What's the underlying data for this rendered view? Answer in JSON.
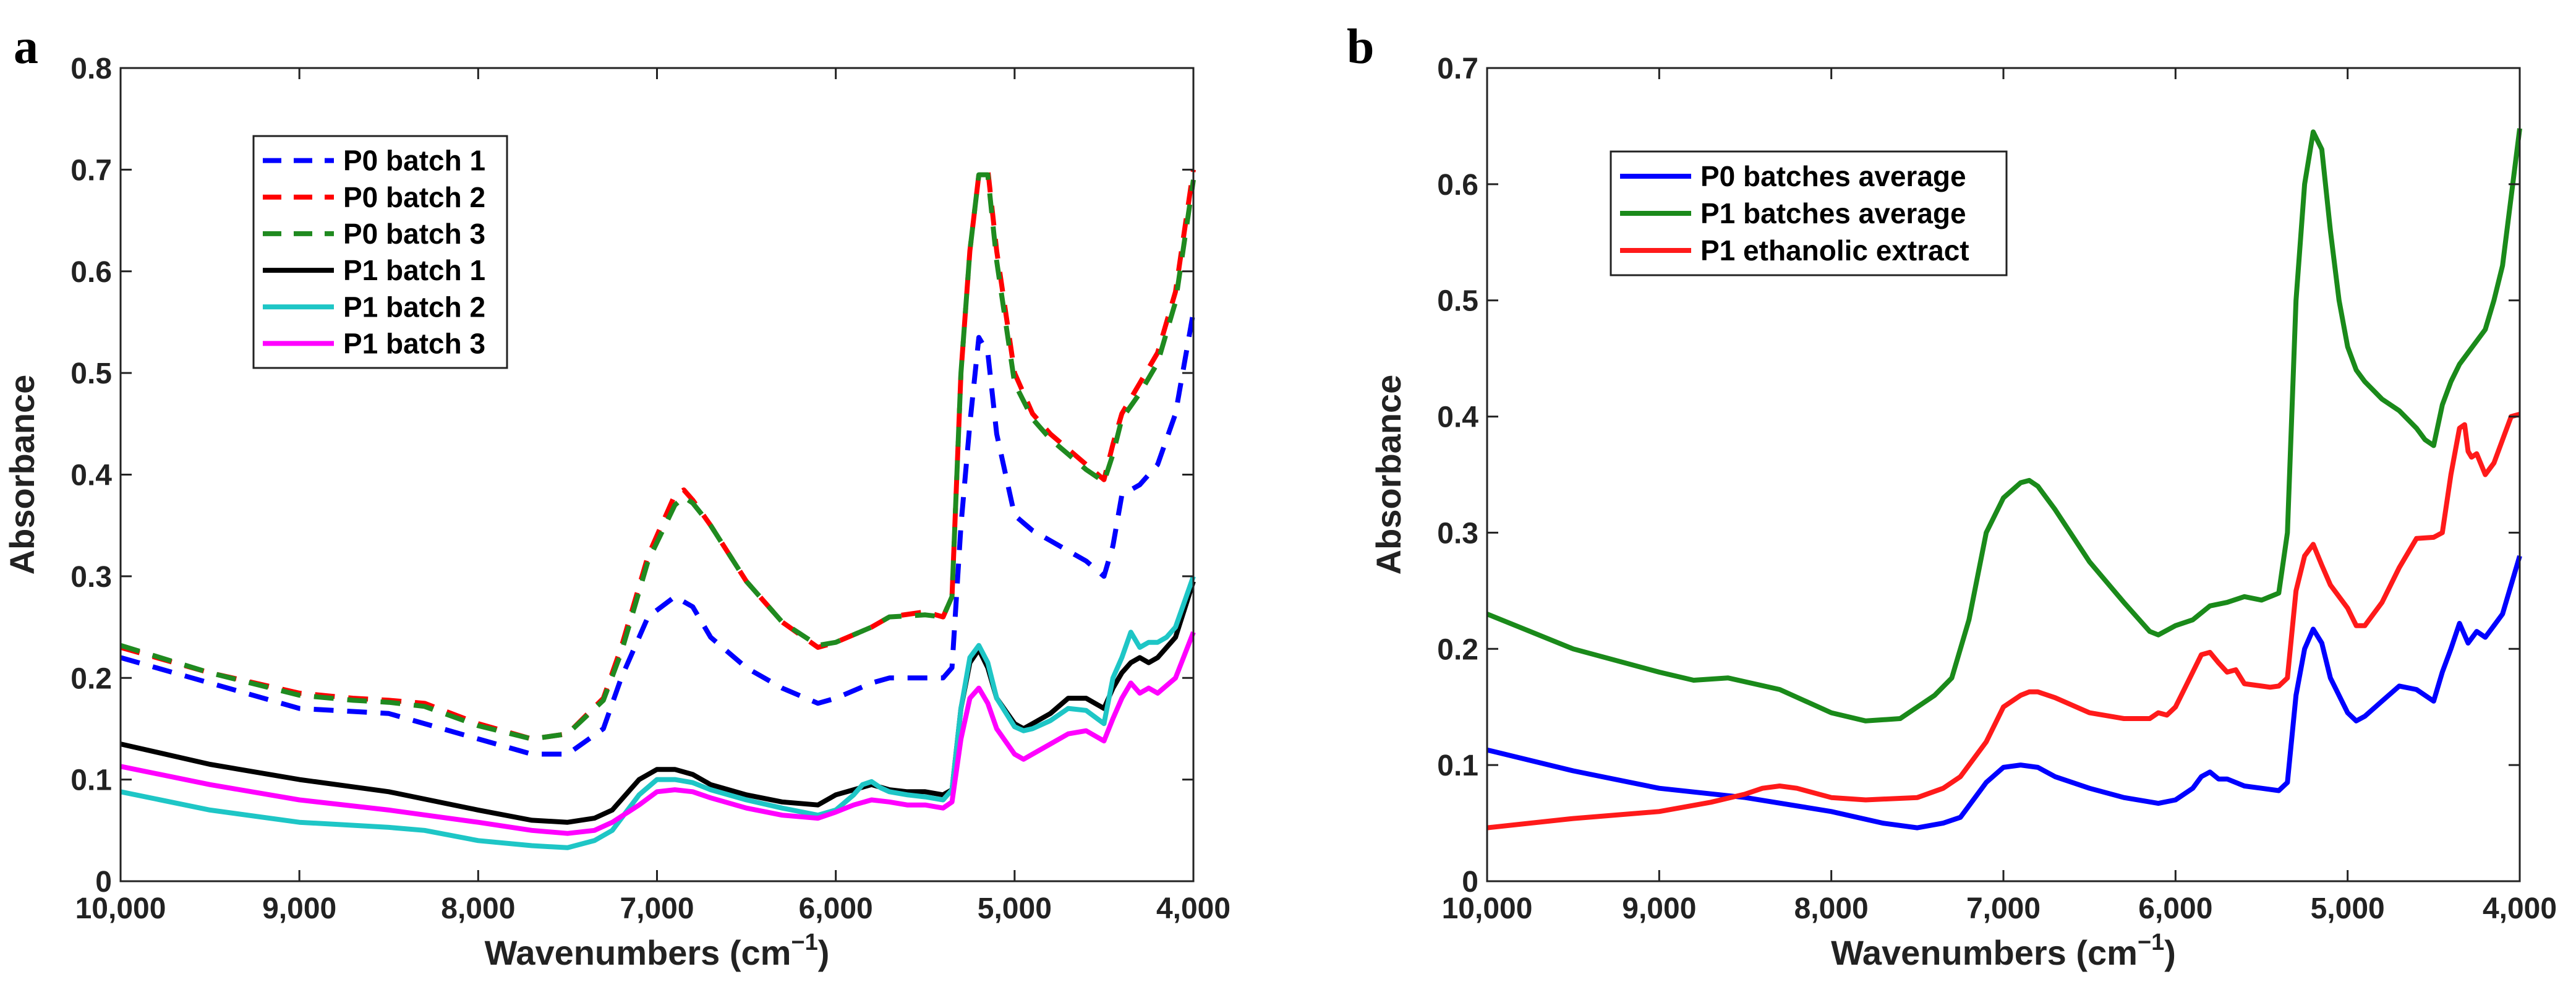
{
  "chart_data": [
    {
      "panel": "a",
      "type": "line",
      "xlabel": "Wavenumbers (cm",
      "xlabel_sup": "−1",
      "xlabel_close": ")",
      "ylabel": "Absorbance",
      "xlim": [
        10000,
        4000
      ],
      "ylim": [
        0,
        0.8
      ],
      "xticks": [
        10000,
        9000,
        8000,
        7000,
        6000,
        5000,
        4000
      ],
      "xtick_labels": [
        "10,000",
        "9,000",
        "8,000",
        "7,000",
        "6,000",
        "5,000",
        "4,000"
      ],
      "yticks": [
        0,
        0.1,
        0.2,
        0.3,
        0.4,
        0.5,
        0.6,
        0.7,
        0.8
      ],
      "ytick_labels": [
        "0",
        "0.1",
        "0.2",
        "0.3",
        "0.4",
        "0.5",
        "0.6",
        "0.7",
        "0.8"
      ],
      "legend_position": "top-left",
      "series": [
        {
          "name": "P0 batch 1",
          "color": "#0000ff",
          "dash": "dashed",
          "x": [
            10000,
            9500,
            9000,
            8500,
            8000,
            7700,
            7500,
            7300,
            7200,
            7050,
            6900,
            6800,
            6700,
            6500,
            6300,
            6100,
            6000,
            5800,
            5700,
            5500,
            5400,
            5350,
            5300,
            5250,
            5200,
            5150,
            5100,
            5000,
            4900,
            4800,
            4700,
            4600,
            4500,
            4450,
            4400,
            4300,
            4200,
            4100,
            4000
          ],
          "y": [
            0.22,
            0.195,
            0.17,
            0.165,
            0.14,
            0.125,
            0.125,
            0.15,
            0.2,
            0.26,
            0.28,
            0.27,
            0.24,
            0.21,
            0.19,
            0.175,
            0.18,
            0.195,
            0.2,
            0.2,
            0.2,
            0.21,
            0.35,
            0.45,
            0.535,
            0.52,
            0.44,
            0.36,
            0.345,
            0.335,
            0.325,
            0.315,
            0.3,
            0.33,
            0.38,
            0.39,
            0.41,
            0.46,
            0.56
          ]
        },
        {
          "name": "P0 batch 2",
          "color": "#ff0000",
          "dash": "dashed",
          "x": [
            10000,
            9500,
            9000,
            8700,
            8500,
            8300,
            8000,
            7700,
            7500,
            7300,
            7200,
            7050,
            6900,
            6850,
            6800,
            6700,
            6500,
            6300,
            6100,
            6000,
            5800,
            5700,
            5500,
            5400,
            5350,
            5300,
            5250,
            5200,
            5150,
            5100,
            5000,
            4900,
            4800,
            4700,
            4600,
            4500,
            4450,
            4400,
            4300,
            4200,
            4100,
            4000
          ],
          "y": [
            0.23,
            0.205,
            0.185,
            0.18,
            0.178,
            0.175,
            0.155,
            0.14,
            0.145,
            0.18,
            0.23,
            0.32,
            0.38,
            0.385,
            0.375,
            0.35,
            0.295,
            0.255,
            0.23,
            0.235,
            0.25,
            0.26,
            0.265,
            0.26,
            0.28,
            0.5,
            0.62,
            0.695,
            0.7,
            0.62,
            0.5,
            0.46,
            0.44,
            0.425,
            0.41,
            0.395,
            0.43,
            0.46,
            0.49,
            0.52,
            0.58,
            0.7
          ]
        },
        {
          "name": "P0 batch 3",
          "color": "#1f8a1f",
          "dash": "dashed",
          "x": [
            10000,
            9500,
            9000,
            8700,
            8500,
            8300,
            8000,
            7700,
            7500,
            7300,
            7200,
            7050,
            6900,
            6850,
            6800,
            6700,
            6500,
            6300,
            6100,
            6000,
            5800,
            5700,
            5500,
            5400,
            5350,
            5300,
            5250,
            5200,
            5150,
            5100,
            5000,
            4900,
            4800,
            4700,
            4600,
            4500,
            4450,
            4400,
            4300,
            4200,
            4100,
            4000
          ],
          "y": [
            0.232,
            0.205,
            0.183,
            0.178,
            0.176,
            0.172,
            0.153,
            0.14,
            0.145,
            0.178,
            0.225,
            0.315,
            0.37,
            0.378,
            0.372,
            0.35,
            0.295,
            0.255,
            0.232,
            0.235,
            0.25,
            0.26,
            0.262,
            0.26,
            0.28,
            0.5,
            0.62,
            0.695,
            0.695,
            0.61,
            0.49,
            0.455,
            0.435,
            0.42,
            0.405,
            0.393,
            0.42,
            0.455,
            0.48,
            0.51,
            0.57,
            0.69
          ]
        },
        {
          "name": "P1 batch 1",
          "color": "#000000",
          "dash": "solid",
          "x": [
            10000,
            9500,
            9000,
            8500,
            8000,
            7700,
            7500,
            7350,
            7250,
            7100,
            7000,
            6900,
            6800,
            6700,
            6500,
            6300,
            6100,
            6000,
            5900,
            5800,
            5700,
            5600,
            5500,
            5400,
            5350,
            5300,
            5250,
            5200,
            5150,
            5100,
            5000,
            4950,
            4900,
            4800,
            4700,
            4600,
            4500,
            4450,
            4400,
            4350,
            4300,
            4250,
            4200,
            4100,
            4000
          ],
          "y": [
            0.135,
            0.115,
            0.1,
            0.088,
            0.07,
            0.06,
            0.058,
            0.062,
            0.07,
            0.1,
            0.11,
            0.11,
            0.105,
            0.095,
            0.085,
            0.078,
            0.075,
            0.085,
            0.09,
            0.095,
            0.09,
            0.088,
            0.088,
            0.085,
            0.09,
            0.17,
            0.215,
            0.228,
            0.21,
            0.18,
            0.155,
            0.15,
            0.155,
            0.165,
            0.18,
            0.18,
            0.17,
            0.19,
            0.205,
            0.215,
            0.22,
            0.215,
            0.22,
            0.24,
            0.295
          ]
        },
        {
          "name": "P1 batch 2",
          "color": "#1ec6c6",
          "dash": "solid",
          "x": [
            10000,
            9500,
            9000,
            8500,
            8300,
            8000,
            7700,
            7500,
            7350,
            7250,
            7100,
            7000,
            6900,
            6800,
            6700,
            6500,
            6300,
            6100,
            6000,
            5900,
            5850,
            5800,
            5750,
            5700,
            5600,
            5500,
            5400,
            5350,
            5300,
            5250,
            5200,
            5150,
            5100,
            5000,
            4950,
            4900,
            4800,
            4700,
            4600,
            4500,
            4450,
            4400,
            4350,
            4300,
            4250,
            4200,
            4150,
            4100,
            4000
          ],
          "y": [
            0.088,
            0.07,
            0.058,
            0.053,
            0.05,
            0.04,
            0.035,
            0.033,
            0.04,
            0.05,
            0.085,
            0.1,
            0.1,
            0.097,
            0.09,
            0.08,
            0.072,
            0.065,
            0.07,
            0.085,
            0.095,
            0.098,
            0.092,
            0.088,
            0.085,
            0.083,
            0.08,
            0.09,
            0.17,
            0.22,
            0.232,
            0.215,
            0.18,
            0.152,
            0.148,
            0.15,
            0.158,
            0.17,
            0.168,
            0.155,
            0.2,
            0.22,
            0.245,
            0.23,
            0.235,
            0.235,
            0.24,
            0.25,
            0.3
          ]
        },
        {
          "name": "P1 batch 3",
          "color": "#ff00ff",
          "dash": "solid",
          "x": [
            10000,
            9500,
            9000,
            8500,
            8000,
            7700,
            7500,
            7350,
            7250,
            7100,
            7000,
            6900,
            6800,
            6700,
            6500,
            6300,
            6100,
            6000,
            5900,
            5800,
            5700,
            5600,
            5500,
            5400,
            5350,
            5300,
            5250,
            5200,
            5150,
            5100,
            5000,
            4950,
            4900,
            4800,
            4700,
            4600,
            4500,
            4450,
            4400,
            4350,
            4300,
            4250,
            4200,
            4100,
            4000
          ],
          "y": [
            0.113,
            0.095,
            0.08,
            0.07,
            0.058,
            0.05,
            0.047,
            0.05,
            0.058,
            0.075,
            0.088,
            0.09,
            0.088,
            0.082,
            0.072,
            0.065,
            0.062,
            0.068,
            0.075,
            0.08,
            0.078,
            0.075,
            0.075,
            0.072,
            0.078,
            0.14,
            0.18,
            0.19,
            0.175,
            0.15,
            0.125,
            0.12,
            0.125,
            0.135,
            0.145,
            0.148,
            0.138,
            0.16,
            0.18,
            0.195,
            0.185,
            0.19,
            0.185,
            0.2,
            0.245
          ]
        }
      ]
    },
    {
      "panel": "b",
      "type": "line",
      "xlabel": "Wavenumbers (cm",
      "xlabel_sup": "−1",
      "xlabel_close": ")",
      "ylabel": "Absorbance",
      "xlim": [
        10000,
        4000
      ],
      "ylim": [
        0,
        0.7
      ],
      "xticks": [
        10000,
        9000,
        8000,
        7000,
        6000,
        5000,
        4000
      ],
      "xtick_labels": [
        "10,000",
        "9,000",
        "8,000",
        "7,000",
        "6,000",
        "5,000",
        "4,000"
      ],
      "yticks": [
        0,
        0.1,
        0.2,
        0.3,
        0.4,
        0.5,
        0.6,
        0.7
      ],
      "ytick_labels": [
        "0",
        "0.1",
        "0.2",
        "0.3",
        "0.4",
        "0.5",
        "0.6",
        "0.7"
      ],
      "legend_position": "top-left",
      "series": [
        {
          "name": "P0 batches average",
          "color": "#0000ff",
          "dash": "solid",
          "x": [
            10000,
            9500,
            9000,
            8500,
            8000,
            7700,
            7500,
            7350,
            7250,
            7100,
            7000,
            6900,
            6800,
            6700,
            6500,
            6300,
            6100,
            6000,
            5900,
            5850,
            5800,
            5750,
            5700,
            5600,
            5500,
            5400,
            5350,
            5300,
            5250,
            5200,
            5150,
            5100,
            5000,
            4950,
            4900,
            4800,
            4700,
            4600,
            4500,
            4450,
            4400,
            4350,
            4300,
            4250,
            4200,
            4150,
            4100,
            4000
          ],
          "y": [
            0.113,
            0.095,
            0.08,
            0.072,
            0.06,
            0.05,
            0.046,
            0.05,
            0.055,
            0.085,
            0.098,
            0.1,
            0.098,
            0.09,
            0.08,
            0.072,
            0.067,
            0.07,
            0.08,
            0.09,
            0.094,
            0.088,
            0.088,
            0.082,
            0.08,
            0.078,
            0.085,
            0.16,
            0.2,
            0.217,
            0.205,
            0.175,
            0.145,
            0.138,
            0.142,
            0.155,
            0.168,
            0.165,
            0.155,
            0.18,
            0.2,
            0.222,
            0.205,
            0.215,
            0.21,
            0.22,
            0.23,
            0.28
          ]
        },
        {
          "name": "P1 batches average",
          "color": "#1a8a1a",
          "dash": "solid",
          "x": [
            10000,
            9500,
            9000,
            8800,
            8600,
            8300,
            8000,
            7800,
            7600,
            7400,
            7300,
            7200,
            7100,
            7000,
            6900,
            6850,
            6800,
            6700,
            6500,
            6300,
            6150,
            6100,
            6000,
            5900,
            5800,
            5700,
            5600,
            5500,
            5400,
            5350,
            5300,
            5250,
            5200,
            5150,
            5100,
            5050,
            5000,
            4950,
            4900,
            4800,
            4700,
            4600,
            4550,
            4500,
            4450,
            4400,
            4350,
            4300,
            4250,
            4200,
            4150,
            4100,
            4000
          ],
          "y": [
            0.23,
            0.2,
            0.18,
            0.173,
            0.175,
            0.165,
            0.145,
            0.138,
            0.14,
            0.16,
            0.175,
            0.225,
            0.3,
            0.33,
            0.343,
            0.345,
            0.34,
            0.32,
            0.275,
            0.24,
            0.215,
            0.212,
            0.22,
            0.225,
            0.237,
            0.24,
            0.245,
            0.242,
            0.248,
            0.3,
            0.5,
            0.6,
            0.645,
            0.63,
            0.56,
            0.5,
            0.46,
            0.44,
            0.43,
            0.415,
            0.405,
            0.39,
            0.38,
            0.375,
            0.41,
            0.43,
            0.445,
            0.455,
            0.465,
            0.475,
            0.5,
            0.53,
            0.648
          ]
        },
        {
          "name": "P1 ethanolic extract",
          "color": "#ff1a1a",
          "dash": "solid",
          "x": [
            10000,
            9500,
            9000,
            8700,
            8500,
            8400,
            8300,
            8200,
            8000,
            7800,
            7500,
            7350,
            7250,
            7100,
            7000,
            6900,
            6850,
            6800,
            6700,
            6500,
            6300,
            6150,
            6100,
            6050,
            6000,
            5950,
            5900,
            5850,
            5800,
            5750,
            5700,
            5650,
            5600,
            5500,
            5450,
            5400,
            5350,
            5300,
            5250,
            5200,
            5150,
            5100,
            5000,
            4950,
            4900,
            4850,
            4800,
            4700,
            4600,
            4500,
            4450,
            4400,
            4350,
            4320,
            4300,
            4280,
            4250,
            4200,
            4150,
            4100,
            4050,
            4000
          ],
          "y": [
            0.046,
            0.054,
            0.06,
            0.068,
            0.075,
            0.08,
            0.082,
            0.08,
            0.072,
            0.07,
            0.072,
            0.08,
            0.09,
            0.12,
            0.15,
            0.16,
            0.163,
            0.163,
            0.158,
            0.145,
            0.14,
            0.14,
            0.145,
            0.143,
            0.15,
            0.165,
            0.18,
            0.195,
            0.197,
            0.188,
            0.18,
            0.182,
            0.17,
            0.168,
            0.167,
            0.168,
            0.175,
            0.25,
            0.28,
            0.29,
            0.272,
            0.255,
            0.235,
            0.22,
            0.22,
            0.23,
            0.24,
            0.27,
            0.295,
            0.296,
            0.3,
            0.35,
            0.39,
            0.393,
            0.37,
            0.365,
            0.368,
            0.35,
            0.36,
            0.38,
            0.4,
            0.402
          ]
        }
      ]
    }
  ],
  "labels": {
    "panel_a": "a",
    "panel_b": "b"
  }
}
